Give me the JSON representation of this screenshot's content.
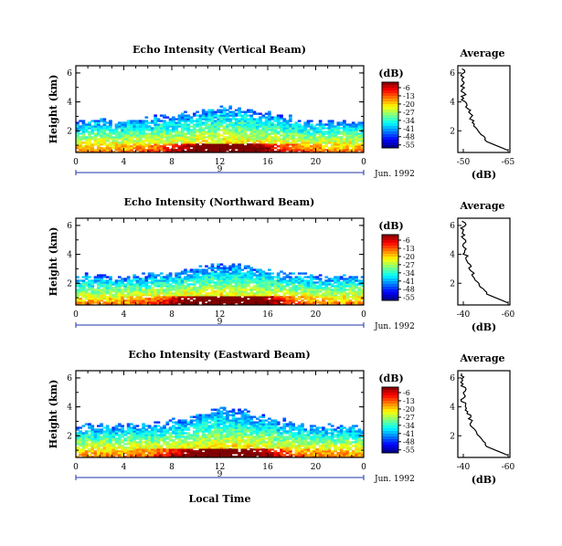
{
  "chart_data": [
    {
      "type": "heatmap",
      "title": "Echo Intensity (Vertical Beam)",
      "ylabel": "Height (km)",
      "x_ticks": [
        "0",
        "4",
        "8",
        "12",
        "16",
        "20",
        "0"
      ],
      "y_ticks": [
        "2",
        "4",
        "6"
      ],
      "xlim": [
        0,
        24
      ],
      "ylim": [
        0.5,
        6.5
      ],
      "day_label": "9",
      "date_label": "Jun. 1992",
      "colorbar": {
        "unit": "(dB)",
        "levels": [
          "-6",
          "-13",
          "-20",
          "-27",
          "-34",
          "-41",
          "-48",
          "-55"
        ]
      },
      "average": {
        "title": "Average",
        "xlabel": "(dB)",
        "x_ticks": [
          "-50",
          "-65"
        ],
        "y_ticks": [
          "2",
          "4",
          "6"
        ]
      }
    },
    {
      "type": "heatmap",
      "title": "Echo Intensity (Northward Beam)",
      "ylabel": "Height (km)",
      "x_ticks": [
        "0",
        "4",
        "8",
        "12",
        "16",
        "20",
        "0"
      ],
      "y_ticks": [
        "2",
        "4",
        "6"
      ],
      "xlim": [
        0,
        24
      ],
      "ylim": [
        0.5,
        6.5
      ],
      "day_label": "9",
      "date_label": "Jun. 1992",
      "colorbar": {
        "unit": "(dB)",
        "levels": [
          "-6",
          "-13",
          "-20",
          "-27",
          "-34",
          "-41",
          "-48",
          "-55"
        ]
      },
      "average": {
        "title": "Average",
        "xlabel": "(dB)",
        "x_ticks": [
          "-40",
          "-60"
        ],
        "y_ticks": [
          "2",
          "4",
          "6"
        ]
      }
    },
    {
      "type": "heatmap",
      "title": "Echo Intensity (Eastward Beam)",
      "ylabel": "Height (km)",
      "xlabel": "Local Time",
      "x_ticks": [
        "0",
        "4",
        "8",
        "12",
        "16",
        "20",
        "0"
      ],
      "y_ticks": [
        "2",
        "4",
        "6"
      ],
      "xlim": [
        0,
        24
      ],
      "ylim": [
        0.5,
        6.5
      ],
      "day_label": "9",
      "date_label": "Jun. 1992",
      "colorbar": {
        "unit": "(dB)",
        "levels": [
          "-6",
          "-13",
          "-20",
          "-27",
          "-34",
          "-41",
          "-48",
          "-55"
        ]
      },
      "average": {
        "title": "Average",
        "xlabel": "(dB)",
        "x_ticks": [
          "-40",
          "-60"
        ],
        "y_ticks": [
          "2",
          "4",
          "6"
        ]
      }
    }
  ]
}
